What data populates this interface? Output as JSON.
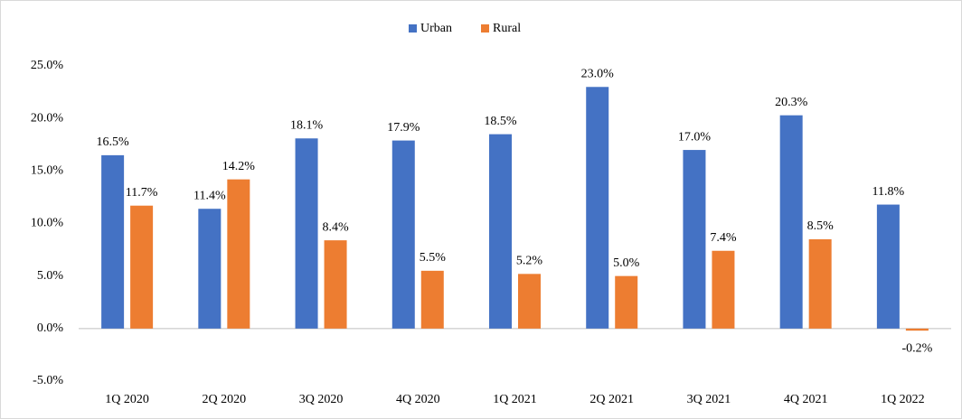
{
  "chart_data": {
    "type": "bar",
    "categories": [
      "1Q 2020",
      "2Q 2020",
      "3Q 2020",
      "4Q 2020",
      "1Q 2021",
      "2Q 2021",
      "3Q 2021",
      "4Q 2021",
      "1Q 2022"
    ],
    "series": [
      {
        "name": "Urban",
        "color": "#4472c4",
        "values": [
          16.5,
          11.4,
          18.1,
          17.9,
          18.5,
          23.0,
          17.0,
          20.3,
          11.8
        ],
        "value_labels": [
          "16.5%",
          "11.4%",
          "18.1%",
          "17.9%",
          "18.5%",
          "23.0%",
          "17.0%",
          "20.3%",
          "11.8%"
        ]
      },
      {
        "name": "Rural",
        "color": "#ed7d31",
        "values": [
          11.7,
          14.2,
          8.4,
          5.5,
          5.2,
          5.0,
          7.4,
          8.5,
          -0.2
        ],
        "value_labels": [
          "11.7%",
          "14.2%",
          "8.4%",
          "5.5%",
          "5.2%",
          "5.0%",
          "7.4%",
          "8.5%",
          "-0.2%"
        ]
      }
    ],
    "ylim": [
      -5,
      25
    ],
    "yticks": [
      {
        "value": -5,
        "label": "-5.0%"
      },
      {
        "value": 0,
        "label": "0.0%"
      },
      {
        "value": 5,
        "label": "5.0%"
      },
      {
        "value": 10,
        "label": "10.0%"
      },
      {
        "value": 15,
        "label": "15.0%"
      },
      {
        "value": 20,
        "label": "20.0%"
      },
      {
        "value": 25,
        "label": "25.0%"
      }
    ],
    "grid": false,
    "legend": "top"
  }
}
